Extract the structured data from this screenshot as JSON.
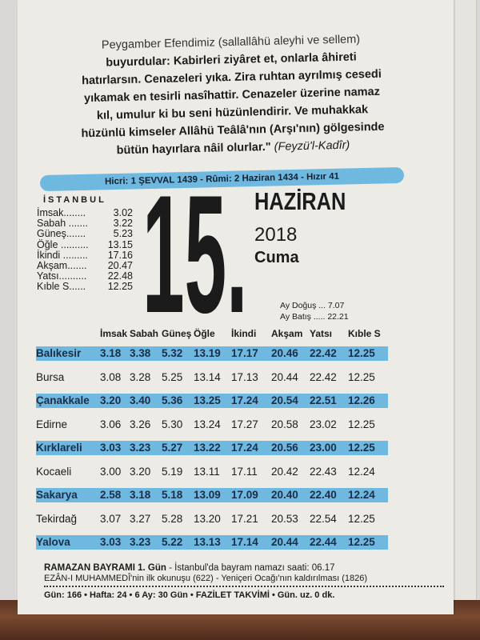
{
  "quote": {
    "lines": [
      "Peygamber Efendimiz (sallallâhü aleyhi ve sellem)",
      "buyurdular: Kabirleri ziyâret et, onlarla âhireti",
      "hatırlarsın. Cenazeleri yıka. Zira ruhtan ayrılmış cesedi",
      "yıkamak en tesirli nasîhattir. Cenazeler üzerine namaz",
      "kıl, umulur ki bu seni hüzünlendirir. Ve muhakkak",
      "hüzünlü kimseler Allâhü Teâlâ'nın (Arşı'nın) gölgesinde",
      "bütün hayırlara nâil olurlar.\""
    ],
    "source": "(Feyzü'l-Kadîr)"
  },
  "hicri_bar": "Hicri: 1 ŞEVVAL 1439 - Rûmi: 2 Haziran 1434 - Hızır 41",
  "istanbul": {
    "city": "İSTANBUL",
    "times": [
      {
        "label": "İmsak........",
        "value": "3.02"
      },
      {
        "label": "Sabah .......",
        "value": "3.22"
      },
      {
        "label": "Güneş.......",
        "value": "5.23"
      },
      {
        "label": "Öğle ..........",
        "value": "13.15"
      },
      {
        "label": "İkindi .........",
        "value": "17.16"
      },
      {
        "label": "Akşam.......",
        "value": "20.47"
      },
      {
        "label": "Yatsı..........",
        "value": "22.48"
      },
      {
        "label": "Kıble S......",
        "value": "12.25"
      }
    ]
  },
  "date": {
    "day": "15.",
    "month": "HAZİRAN",
    "year": "2018",
    "weekday": "Cuma"
  },
  "moon": {
    "rise": "Ay Doğuş ... 7.07",
    "set": "Ay Batış ..... 22.21"
  },
  "table": {
    "headers": [
      "",
      "İmsak",
      "Sabah",
      "Güneş",
      "Öğle",
      "İkindi",
      "Akşam",
      "Yatsı",
      "Kıble S"
    ],
    "rows": [
      [
        "Balıkesir",
        "3.18",
        "3.38",
        "5.32",
        "13.19",
        "17.17",
        "20.46",
        "22.42",
        "12.25"
      ],
      [
        "Bursa",
        "3.08",
        "3.28",
        "5.25",
        "13.14",
        "17.13",
        "20.44",
        "22.42",
        "12.25"
      ],
      [
        "Çanakkale",
        "3.20",
        "3.40",
        "5.36",
        "13.25",
        "17.24",
        "20.54",
        "22.51",
        "12.26"
      ],
      [
        "Edirne",
        "3.06",
        "3.26",
        "5.30",
        "13.24",
        "17.27",
        "20.58",
        "23.02",
        "12.25"
      ],
      [
        "Kırklareli",
        "3.03",
        "3.23",
        "5.27",
        "13.22",
        "17.24",
        "20.56",
        "23.00",
        "12.25"
      ],
      [
        "Kocaeli",
        "3.00",
        "3.20",
        "5.19",
        "13.11",
        "17.11",
        "20.42",
        "22.43",
        "12.24"
      ],
      [
        "Sakarya",
        "2.58",
        "3.18",
        "5.18",
        "13.09",
        "17.09",
        "20.40",
        "22.40",
        "12.24"
      ],
      [
        "Tekirdağ",
        "3.07",
        "3.27",
        "5.28",
        "13.20",
        "17.21",
        "20.53",
        "22.54",
        "12.25"
      ],
      [
        "Yalova",
        "3.03",
        "3.23",
        "5.22",
        "13.13",
        "17.14",
        "20.44",
        "22.44",
        "12.25"
      ]
    ],
    "highlight_color": "#6fb9e0"
  },
  "footer": {
    "event_bold": "RAMAZAN BAYRAMI 1. Gün",
    "event_rest": " - İstanbul'da bayram namazı saati: 06.17",
    "line2": "EZÂN-I MUHAMMEDÎ'nin ilk okunuşu (622) - Yeniçeri Ocağı'nın kaldırılması (1826)",
    "line3": "Gün: 166 • Hafta: 24 • 6 Ay: 30 Gün • FAZİLET TAKVİMİ • Gün. uz. 0 dk."
  }
}
